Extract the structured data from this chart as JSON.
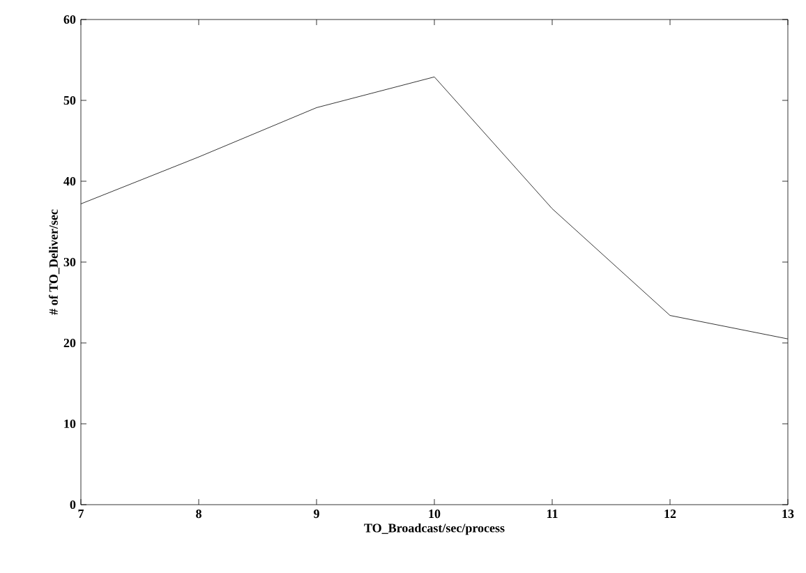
{
  "chart_data": {
    "type": "line",
    "xlabel": "TO_Broadcast/sec/process",
    "ylabel": "# of TO_Deliver/sec",
    "x": [
      7,
      8,
      9,
      10,
      11,
      12,
      13
    ],
    "series": [
      {
        "color": "#000000",
        "values": [
          37.2,
          43,
          49.1,
          52.9,
          36.6,
          23.4,
          20.5
        ]
      }
    ],
    "xlim": [
      7,
      13
    ],
    "ylim": [
      0,
      60
    ],
    "xticks": [
      7,
      8,
      9,
      10,
      11,
      12,
      13
    ],
    "yticks": [
      0,
      10,
      20,
      30,
      40,
      50,
      60
    ],
    "marker": "none",
    "line_style": "solid"
  }
}
